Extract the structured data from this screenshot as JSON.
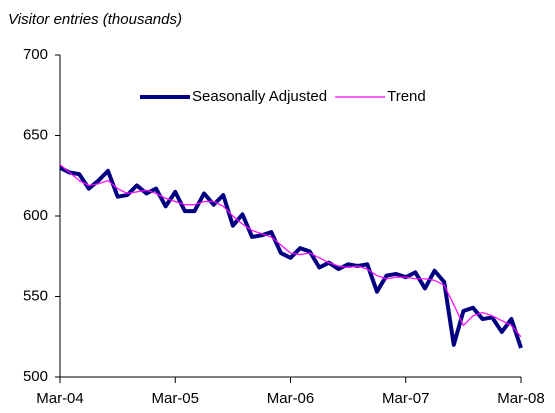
{
  "chart_data": {
    "type": "line",
    "y_label": "Visitor entries (thousands)",
    "categories": [
      "Mar-04",
      null,
      null,
      null,
      null,
      null,
      null,
      null,
      null,
      null,
      null,
      null,
      "Mar-05",
      null,
      null,
      null,
      null,
      null,
      null,
      null,
      null,
      null,
      null,
      null,
      "Mar-06",
      null,
      null,
      null,
      null,
      null,
      null,
      null,
      null,
      null,
      null,
      null,
      "Mar-07",
      null,
      null,
      null,
      null,
      null,
      null,
      null,
      null,
      null,
      null,
      null,
      "Mar-08"
    ],
    "series": [
      {
        "name": "Seasonally Adjusted",
        "color": "#000080",
        "values": [
          630,
          627,
          626,
          617,
          622,
          628,
          612,
          613,
          619,
          614,
          617,
          606,
          615,
          603,
          603,
          614,
          607,
          613,
          594,
          601,
          587,
          588,
          590,
          577,
          574,
          580,
          578,
          568,
          571,
          567,
          570,
          569,
          570,
          553,
          563,
          564,
          562,
          565,
          555,
          566,
          559,
          520,
          541,
          543,
          536,
          537,
          528,
          536,
          518
        ]
      },
      {
        "name": "Trend",
        "color": "#ff00ff",
        "values": [
          632,
          627,
          622,
          619,
          620,
          622,
          617,
          614,
          615,
          616,
          614,
          611,
          609,
          607,
          607,
          609,
          609,
          606,
          600,
          595,
          591,
          589,
          587,
          582,
          577,
          576,
          577,
          574,
          571,
          569,
          568,
          569,
          567,
          563,
          561,
          562,
          562,
          561,
          561,
          560,
          557,
          545,
          532,
          538,
          540,
          538,
          535,
          532,
          525
        ]
      }
    ],
    "ylim": [
      500,
      700
    ],
    "yticks": [
      500,
      550,
      600,
      650,
      700
    ],
    "grid": false
  }
}
